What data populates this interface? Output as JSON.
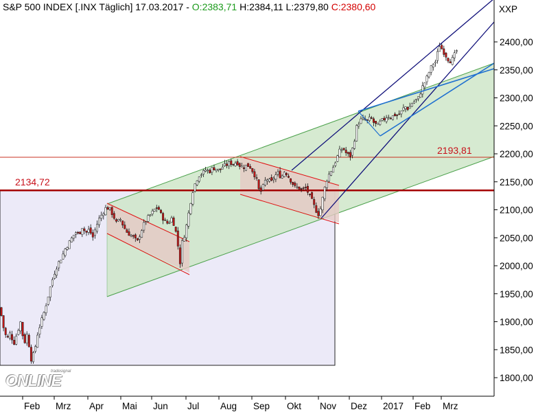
{
  "header": {
    "symbol": "S&P 500 INDEX [.INX",
    "period": "Täglich]",
    "date": "17.03.2017",
    "separator": "-",
    "open": "O:2383,71",
    "high": "H:2384,11",
    "low": "L:2379,80",
    "close": "C:2380,60"
  },
  "xxp_label": "XXP",
  "logo": {
    "brand": "ONLINE",
    "sub": "tradesignal"
  },
  "chart_data": {
    "type": "candlestick",
    "title": "",
    "y_ticks": [
      1800,
      1850,
      1900,
      1950,
      2000,
      2050,
      2100,
      2150,
      2200,
      2250,
      2300,
      2350,
      2400
    ],
    "y_tick_labels": [
      "1800,00",
      "1850,00",
      "1900,00",
      "1950,00",
      "2000,00",
      "2050,00",
      "2100,00",
      "2150,00",
      "2200,00",
      "2250,00",
      "2300,00",
      "2350,00",
      "2400,00"
    ],
    "ylim": [
      1775,
      2445
    ],
    "x_ticks": [
      "Feb",
      "Mrz",
      "Apr",
      "Mai",
      "Jun",
      "Jul",
      "Aug",
      "Sep",
      "Okt",
      "Nov",
      "Dez",
      "2017",
      "Feb",
      "Mrz"
    ],
    "grid": false,
    "levels": [
      {
        "value": 2134.72,
        "label": "2134,72",
        "color": "#a40000"
      },
      {
        "value": 2193.81,
        "label": "2193,81",
        "color": "#c83020"
      }
    ],
    "close_path": [
      [
        0,
        1925
      ],
      [
        5,
        1890
      ],
      [
        10,
        1868
      ],
      [
        15,
        1880
      ],
      [
        20,
        1860
      ],
      [
        25,
        1880
      ],
      [
        30,
        1900
      ],
      [
        35,
        1860
      ],
      [
        40,
        1880
      ],
      [
        45,
        1832
      ],
      [
        50,
        1845
      ],
      [
        55,
        1880
      ],
      [
        60,
        1900
      ],
      [
        65,
        1920
      ],
      [
        70,
        1945
      ],
      [
        75,
        1970
      ],
      [
        80,
        1990
      ],
      [
        85,
        2005
      ],
      [
        90,
        2015
      ],
      [
        95,
        2030
      ],
      [
        100,
        2040
      ],
      [
        105,
        2050
      ],
      [
        110,
        2060
      ],
      [
        115,
        2055
      ],
      [
        120,
        2070
      ],
      [
        125,
        2058
      ],
      [
        130,
        2065
      ],
      [
        135,
        2050
      ],
      [
        140,
        2070
      ],
      [
        145,
        2085
      ],
      [
        150,
        2095
      ],
      [
        155,
        2105
      ],
      [
        160,
        2100
      ],
      [
        165,
        2090
      ],
      [
        170,
        2075
      ],
      [
        175,
        2085
      ],
      [
        180,
        2070
      ],
      [
        185,
        2060
      ],
      [
        190,
        2055
      ],
      [
        195,
        2050
      ],
      [
        200,
        2042
      ],
      [
        205,
        2060
      ],
      [
        210,
        2075
      ],
      [
        215,
        2085
      ],
      [
        220,
        2092
      ],
      [
        225,
        2100
      ],
      [
        230,
        2105
      ],
      [
        235,
        2090
      ],
      [
        240,
        2080
      ],
      [
        245,
        2075
      ],
      [
        250,
        2085
      ],
      [
        255,
        2070
      ],
      [
        260,
        2030
      ],
      [
        263,
        2000
      ],
      [
        265,
        2040
      ],
      [
        270,
        2060
      ],
      [
        275,
        2095
      ],
      [
        280,
        2130
      ],
      [
        285,
        2150
      ],
      [
        290,
        2162
      ],
      [
        295,
        2165
      ],
      [
        300,
        2172
      ],
      [
        305,
        2168
      ],
      [
        310,
        2175
      ],
      [
        315,
        2173
      ],
      [
        320,
        2170
      ],
      [
        325,
        2178
      ],
      [
        330,
        2180
      ],
      [
        335,
        2184
      ],
      [
        340,
        2182
      ],
      [
        345,
        2186
      ],
      [
        350,
        2178
      ],
      [
        355,
        2176
      ],
      [
        360,
        2180
      ],
      [
        365,
        2176
      ],
      [
        370,
        2165
      ],
      [
        375,
        2150
      ],
      [
        378,
        2130
      ],
      [
        382,
        2135
      ],
      [
        385,
        2150
      ],
      [
        390,
        2155
      ],
      [
        395,
        2148
      ],
      [
        400,
        2160
      ],
      [
        405,
        2165
      ],
      [
        410,
        2158
      ],
      [
        415,
        2170
      ],
      [
        420,
        2160
      ],
      [
        425,
        2150
      ],
      [
        430,
        2140
      ],
      [
        435,
        2140
      ],
      [
        440,
        2135
      ],
      [
        445,
        2140
      ],
      [
        450,
        2128
      ],
      [
        455,
        2115
      ],
      [
        460,
        2100
      ],
      [
        465,
        2090
      ],
      [
        470,
        2120
      ],
      [
        475,
        2150
      ],
      [
        480,
        2165
      ],
      [
        485,
        2175
      ],
      [
        490,
        2190
      ],
      [
        495,
        2205
      ],
      [
        500,
        2210
      ],
      [
        505,
        2200
      ],
      [
        510,
        2195
      ],
      [
        515,
        2215
      ],
      [
        520,
        2250
      ],
      [
        525,
        2260
      ],
      [
        530,
        2262
      ],
      [
        535,
        2258
      ],
      [
        540,
        2265
      ],
      [
        545,
        2255
      ],
      [
        550,
        2250
      ],
      [
        555,
        2258
      ],
      [
        560,
        2262
      ],
      [
        565,
        2268
      ],
      [
        570,
        2265
      ],
      [
        575,
        2270
      ],
      [
        580,
        2268
      ],
      [
        585,
        2275
      ],
      [
        590,
        2285
      ],
      [
        595,
        2280
      ],
      [
        600,
        2290
      ],
      [
        605,
        2295
      ],
      [
        610,
        2300
      ],
      [
        615,
        2318
      ],
      [
        620,
        2330
      ],
      [
        625,
        2345
      ],
      [
        630,
        2360
      ],
      [
        635,
        2365
      ],
      [
        640,
        2395
      ],
      [
        645,
        2385
      ],
      [
        650,
        2375
      ],
      [
        655,
        2365
      ],
      [
        660,
        2370
      ],
      [
        665,
        2385
      ],
      [
        668,
        2380
      ]
    ]
  }
}
